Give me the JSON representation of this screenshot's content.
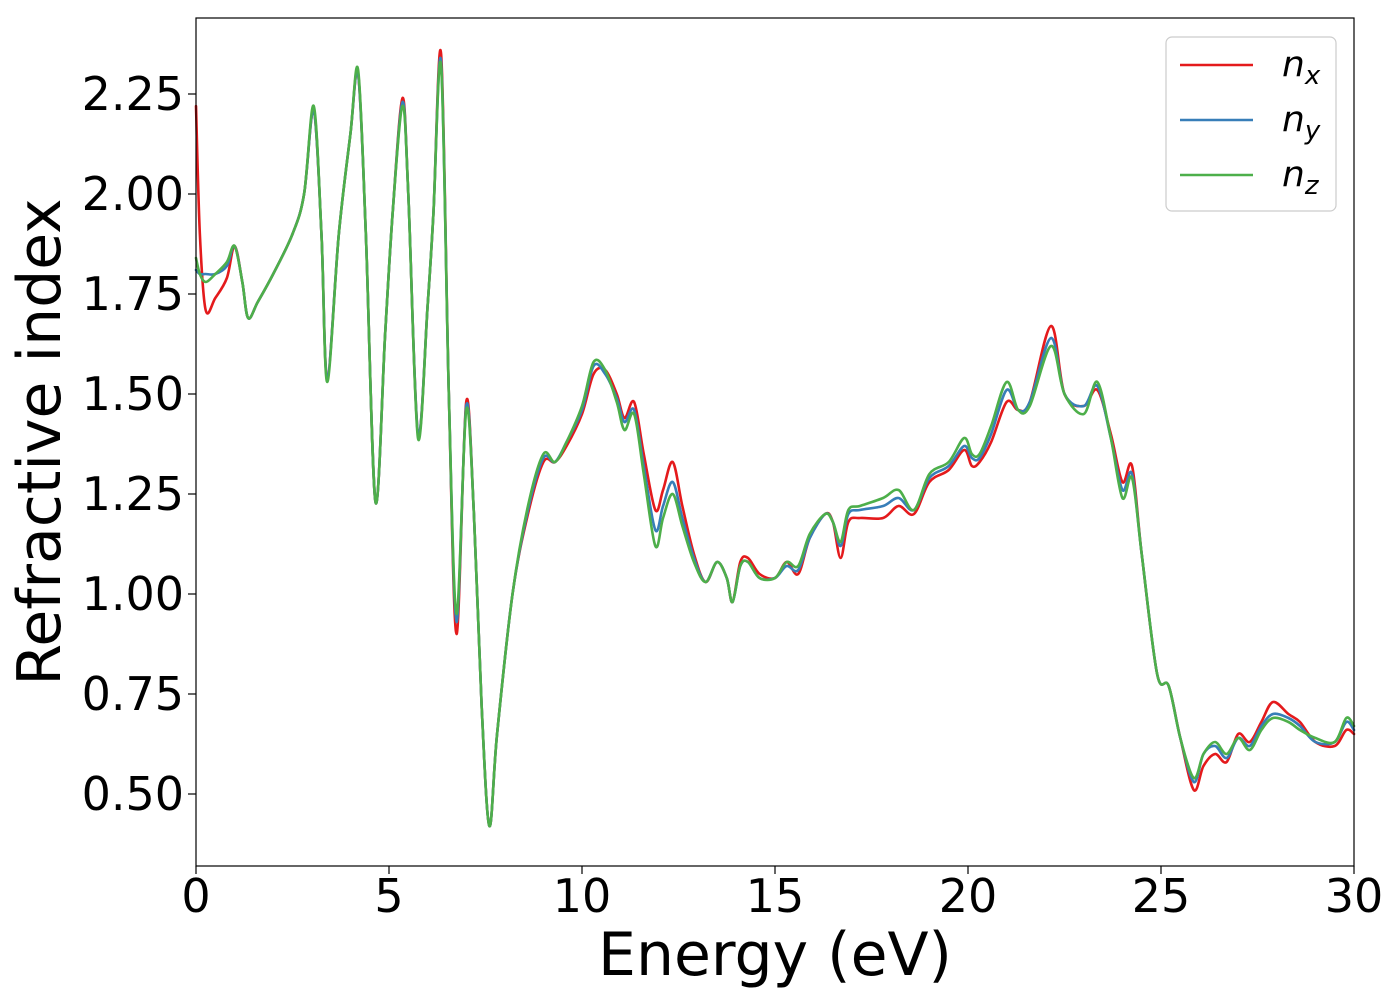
{
  "chart_data": {
    "type": "line",
    "title": "",
    "xlabel": "Energy (eV)",
    "ylabel": "Refractive index",
    "xlim": [
      0,
      30
    ],
    "ylim": [
      0.32,
      2.44
    ],
    "xticks": [
      0,
      5,
      10,
      15,
      20,
      25,
      30
    ],
    "xtick_labels": [
      "0",
      "5",
      "10",
      "15",
      "20",
      "25",
      "30"
    ],
    "yticks": [
      0.5,
      0.75,
      1.0,
      1.25,
      1.5,
      1.75,
      2.0,
      2.25
    ],
    "ytick_labels": [
      "0.50",
      "0.75",
      "1.00",
      "1.25",
      "1.50",
      "1.75",
      "2.00",
      "2.25"
    ],
    "grid": false,
    "legend_position": "top-right",
    "series": [
      {
        "key": "nx",
        "legend_main": "n",
        "legend_sub": "x",
        "color": "#e41a1c",
        "points": [
          [
            0,
            2.22
          ],
          [
            0.1,
            1.9
          ],
          [
            0.25,
            1.71
          ],
          [
            0.5,
            1.74
          ],
          [
            0.8,
            1.79
          ],
          [
            1.0,
            1.87
          ],
          [
            1.2,
            1.78
          ],
          [
            1.35,
            1.69
          ],
          [
            1.6,
            1.73
          ],
          [
            2.0,
            1.8
          ],
          [
            2.5,
            1.9
          ],
          [
            2.8,
            2.0
          ],
          [
            3.05,
            2.21
          ],
          [
            3.25,
            1.9
          ],
          [
            3.4,
            1.54
          ],
          [
            3.7,
            1.9
          ],
          [
            4.0,
            2.15
          ],
          [
            4.2,
            2.3
          ],
          [
            4.4,
            1.9
          ],
          [
            4.65,
            1.23
          ],
          [
            4.9,
            1.65
          ],
          [
            5.1,
            1.96
          ],
          [
            5.35,
            2.24
          ],
          [
            5.5,
            2.0
          ],
          [
            5.75,
            1.4
          ],
          [
            6.0,
            1.72
          ],
          [
            6.15,
            1.95
          ],
          [
            6.35,
            2.35
          ],
          [
            6.55,
            1.5
          ],
          [
            6.75,
            0.9
          ],
          [
            7.0,
            1.48
          ],
          [
            7.2,
            1.2
          ],
          [
            7.4,
            0.72
          ],
          [
            7.6,
            0.42
          ],
          [
            7.8,
            0.65
          ],
          [
            8.2,
            1.0
          ],
          [
            8.6,
            1.2
          ],
          [
            9.0,
            1.33
          ],
          [
            9.3,
            1.33
          ],
          [
            9.6,
            1.37
          ],
          [
            10.0,
            1.45
          ],
          [
            10.3,
            1.55
          ],
          [
            10.6,
            1.56
          ],
          [
            10.9,
            1.5
          ],
          [
            11.1,
            1.44
          ],
          [
            11.35,
            1.48
          ],
          [
            11.6,
            1.35
          ],
          [
            11.9,
            1.21
          ],
          [
            12.1,
            1.26
          ],
          [
            12.35,
            1.33
          ],
          [
            12.6,
            1.22
          ],
          [
            12.9,
            1.1
          ],
          [
            13.2,
            1.03
          ],
          [
            13.5,
            1.08
          ],
          [
            13.75,
            1.04
          ],
          [
            13.9,
            0.98
          ],
          [
            14.1,
            1.08
          ],
          [
            14.3,
            1.09
          ],
          [
            14.6,
            1.05
          ],
          [
            15.0,
            1.04
          ],
          [
            15.3,
            1.08
          ],
          [
            15.6,
            1.05
          ],
          [
            15.9,
            1.14
          ],
          [
            16.3,
            1.2
          ],
          [
            16.5,
            1.18
          ],
          [
            16.7,
            1.09
          ],
          [
            16.9,
            1.18
          ],
          [
            17.2,
            1.19
          ],
          [
            17.8,
            1.19
          ],
          [
            18.2,
            1.22
          ],
          [
            18.6,
            1.2
          ],
          [
            19.0,
            1.28
          ],
          [
            19.5,
            1.31
          ],
          [
            19.9,
            1.36
          ],
          [
            20.1,
            1.32
          ],
          [
            20.3,
            1.33
          ],
          [
            20.6,
            1.38
          ],
          [
            21.0,
            1.48
          ],
          [
            21.3,
            1.46
          ],
          [
            21.6,
            1.48
          ],
          [
            22.15,
            1.67
          ],
          [
            22.5,
            1.5
          ],
          [
            23.0,
            1.47
          ],
          [
            23.35,
            1.51
          ],
          [
            23.7,
            1.4
          ],
          [
            24.0,
            1.28
          ],
          [
            24.25,
            1.32
          ],
          [
            24.5,
            1.1
          ],
          [
            24.9,
            0.8
          ],
          [
            25.2,
            0.77
          ],
          [
            25.5,
            0.64
          ],
          [
            25.85,
            0.51
          ],
          [
            26.1,
            0.57
          ],
          [
            26.4,
            0.6
          ],
          [
            26.7,
            0.58
          ],
          [
            27.0,
            0.65
          ],
          [
            27.3,
            0.63
          ],
          [
            27.6,
            0.68
          ],
          [
            27.9,
            0.73
          ],
          [
            28.3,
            0.7
          ],
          [
            28.6,
            0.68
          ],
          [
            29.0,
            0.63
          ],
          [
            29.5,
            0.62
          ],
          [
            29.8,
            0.66
          ],
          [
            30.0,
            0.65
          ]
        ]
      },
      {
        "key": "ny",
        "legend_main": "n",
        "legend_sub": "y",
        "color": "#377eb8",
        "points": [
          [
            0,
            1.81
          ],
          [
            0.1,
            1.8
          ],
          [
            0.25,
            1.8
          ],
          [
            0.5,
            1.8
          ],
          [
            0.8,
            1.82
          ],
          [
            1.0,
            1.87
          ],
          [
            1.2,
            1.78
          ],
          [
            1.35,
            1.69
          ],
          [
            1.6,
            1.73
          ],
          [
            2.0,
            1.8
          ],
          [
            2.5,
            1.9
          ],
          [
            2.8,
            2.0
          ],
          [
            3.05,
            2.21
          ],
          [
            3.25,
            1.9
          ],
          [
            3.4,
            1.54
          ],
          [
            3.7,
            1.9
          ],
          [
            4.0,
            2.15
          ],
          [
            4.2,
            2.3
          ],
          [
            4.4,
            1.9
          ],
          [
            4.65,
            1.23
          ],
          [
            4.9,
            1.65
          ],
          [
            5.1,
            1.96
          ],
          [
            5.35,
            2.23
          ],
          [
            5.5,
            2.0
          ],
          [
            5.75,
            1.4
          ],
          [
            6.0,
            1.72
          ],
          [
            6.15,
            1.95
          ],
          [
            6.35,
            2.33
          ],
          [
            6.55,
            1.5
          ],
          [
            6.75,
            0.93
          ],
          [
            7.0,
            1.47
          ],
          [
            7.2,
            1.2
          ],
          [
            7.4,
            0.72
          ],
          [
            7.6,
            0.42
          ],
          [
            7.8,
            0.65
          ],
          [
            8.2,
            1.0
          ],
          [
            8.6,
            1.21
          ],
          [
            9.0,
            1.34
          ],
          [
            9.3,
            1.33
          ],
          [
            9.6,
            1.38
          ],
          [
            10.0,
            1.46
          ],
          [
            10.3,
            1.57
          ],
          [
            10.6,
            1.55
          ],
          [
            10.9,
            1.49
          ],
          [
            11.1,
            1.43
          ],
          [
            11.35,
            1.46
          ],
          [
            11.6,
            1.32
          ],
          [
            11.9,
            1.16
          ],
          [
            12.1,
            1.22
          ],
          [
            12.35,
            1.28
          ],
          [
            12.6,
            1.19
          ],
          [
            12.9,
            1.09
          ],
          [
            13.2,
            1.03
          ],
          [
            13.5,
            1.08
          ],
          [
            13.75,
            1.04
          ],
          [
            13.9,
            0.98
          ],
          [
            14.1,
            1.07
          ],
          [
            14.3,
            1.08
          ],
          [
            14.6,
            1.04
          ],
          [
            15.0,
            1.04
          ],
          [
            15.3,
            1.07
          ],
          [
            15.6,
            1.06
          ],
          [
            15.9,
            1.14
          ],
          [
            16.3,
            1.2
          ],
          [
            16.5,
            1.18
          ],
          [
            16.7,
            1.12
          ],
          [
            16.9,
            1.2
          ],
          [
            17.2,
            1.21
          ],
          [
            17.8,
            1.22
          ],
          [
            18.2,
            1.24
          ],
          [
            18.6,
            1.21
          ],
          [
            19.0,
            1.29
          ],
          [
            19.5,
            1.32
          ],
          [
            19.9,
            1.37
          ],
          [
            20.1,
            1.34
          ],
          [
            20.3,
            1.34
          ],
          [
            20.6,
            1.4
          ],
          [
            21.0,
            1.51
          ],
          [
            21.3,
            1.46
          ],
          [
            21.6,
            1.48
          ],
          [
            22.15,
            1.64
          ],
          [
            22.5,
            1.5
          ],
          [
            23.0,
            1.47
          ],
          [
            23.35,
            1.52
          ],
          [
            23.7,
            1.39
          ],
          [
            24.0,
            1.26
          ],
          [
            24.25,
            1.3
          ],
          [
            24.5,
            1.1
          ],
          [
            24.9,
            0.8
          ],
          [
            25.2,
            0.77
          ],
          [
            25.5,
            0.64
          ],
          [
            25.85,
            0.53
          ],
          [
            26.1,
            0.6
          ],
          [
            26.4,
            0.62
          ],
          [
            26.7,
            0.59
          ],
          [
            27.0,
            0.64
          ],
          [
            27.3,
            0.62
          ],
          [
            27.6,
            0.67
          ],
          [
            27.9,
            0.7
          ],
          [
            28.3,
            0.69
          ],
          [
            28.6,
            0.67
          ],
          [
            29.0,
            0.63
          ],
          [
            29.5,
            0.63
          ],
          [
            29.8,
            0.68
          ],
          [
            30.0,
            0.66
          ]
        ]
      },
      {
        "key": "nz",
        "legend_main": "n",
        "legend_sub": "z",
        "color": "#4daf4a",
        "points": [
          [
            0,
            1.84
          ],
          [
            0.1,
            1.8
          ],
          [
            0.25,
            1.78
          ],
          [
            0.5,
            1.8
          ],
          [
            0.8,
            1.83
          ],
          [
            1.0,
            1.87
          ],
          [
            1.2,
            1.78
          ],
          [
            1.35,
            1.69
          ],
          [
            1.6,
            1.73
          ],
          [
            2.0,
            1.8
          ],
          [
            2.5,
            1.9
          ],
          [
            2.8,
            2.0
          ],
          [
            3.05,
            2.22
          ],
          [
            3.25,
            1.9
          ],
          [
            3.4,
            1.53
          ],
          [
            3.7,
            1.9
          ],
          [
            4.0,
            2.15
          ],
          [
            4.2,
            2.31
          ],
          [
            4.4,
            1.9
          ],
          [
            4.65,
            1.23
          ],
          [
            4.9,
            1.65
          ],
          [
            5.1,
            1.96
          ],
          [
            5.35,
            2.22
          ],
          [
            5.5,
            2.0
          ],
          [
            5.75,
            1.39
          ],
          [
            6.0,
            1.72
          ],
          [
            6.15,
            1.95
          ],
          [
            6.35,
            2.32
          ],
          [
            6.55,
            1.5
          ],
          [
            6.75,
            0.95
          ],
          [
            7.0,
            1.46
          ],
          [
            7.2,
            1.2
          ],
          [
            7.4,
            0.72
          ],
          [
            7.6,
            0.42
          ],
          [
            7.8,
            0.65
          ],
          [
            8.2,
            1.0
          ],
          [
            8.6,
            1.22
          ],
          [
            9.0,
            1.35
          ],
          [
            9.3,
            1.33
          ],
          [
            9.6,
            1.38
          ],
          [
            10.0,
            1.47
          ],
          [
            10.3,
            1.58
          ],
          [
            10.6,
            1.56
          ],
          [
            10.9,
            1.48
          ],
          [
            11.1,
            1.41
          ],
          [
            11.35,
            1.45
          ],
          [
            11.6,
            1.3
          ],
          [
            11.9,
            1.12
          ],
          [
            12.1,
            1.19
          ],
          [
            12.35,
            1.25
          ],
          [
            12.6,
            1.17
          ],
          [
            12.9,
            1.08
          ],
          [
            13.2,
            1.03
          ],
          [
            13.5,
            1.08
          ],
          [
            13.75,
            1.04
          ],
          [
            13.9,
            0.98
          ],
          [
            14.1,
            1.07
          ],
          [
            14.3,
            1.08
          ],
          [
            14.6,
            1.04
          ],
          [
            15.0,
            1.04
          ],
          [
            15.3,
            1.08
          ],
          [
            15.6,
            1.07
          ],
          [
            15.9,
            1.15
          ],
          [
            16.3,
            1.2
          ],
          [
            16.5,
            1.18
          ],
          [
            16.7,
            1.13
          ],
          [
            16.9,
            1.21
          ],
          [
            17.2,
            1.22
          ],
          [
            17.8,
            1.24
          ],
          [
            18.2,
            1.26
          ],
          [
            18.6,
            1.21
          ],
          [
            19.0,
            1.3
          ],
          [
            19.5,
            1.33
          ],
          [
            19.9,
            1.39
          ],
          [
            20.1,
            1.35
          ],
          [
            20.3,
            1.35
          ],
          [
            20.6,
            1.42
          ],
          [
            21.0,
            1.53
          ],
          [
            21.3,
            1.46
          ],
          [
            21.6,
            1.47
          ],
          [
            22.15,
            1.62
          ],
          [
            22.5,
            1.5
          ],
          [
            23.0,
            1.45
          ],
          [
            23.35,
            1.53
          ],
          [
            23.7,
            1.39
          ],
          [
            24.0,
            1.24
          ],
          [
            24.25,
            1.29
          ],
          [
            24.5,
            1.1
          ],
          [
            24.9,
            0.8
          ],
          [
            25.2,
            0.77
          ],
          [
            25.5,
            0.64
          ],
          [
            25.85,
            0.54
          ],
          [
            26.1,
            0.6
          ],
          [
            26.4,
            0.63
          ],
          [
            26.7,
            0.6
          ],
          [
            27.0,
            0.64
          ],
          [
            27.3,
            0.61
          ],
          [
            27.6,
            0.66
          ],
          [
            27.9,
            0.69
          ],
          [
            28.3,
            0.68
          ],
          [
            28.6,
            0.66
          ],
          [
            29.0,
            0.64
          ],
          [
            29.5,
            0.63
          ],
          [
            29.8,
            0.69
          ],
          [
            30.0,
            0.67
          ]
        ]
      }
    ]
  }
}
